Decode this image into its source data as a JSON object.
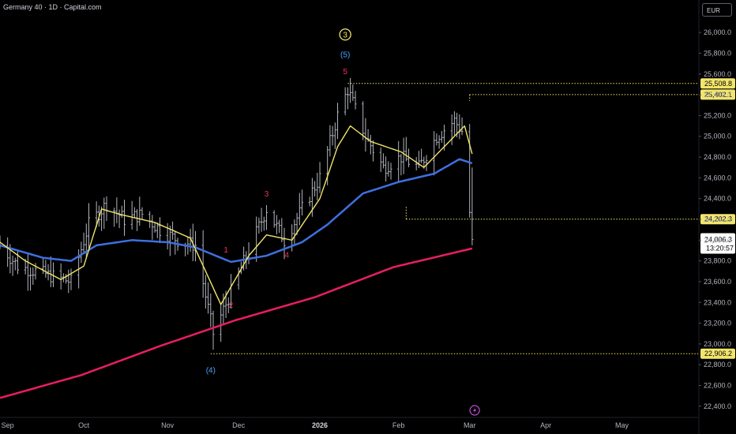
{
  "header": {
    "title": "Germany 40 · 1D · Capital.com"
  },
  "currency_button": {
    "label": "EUR"
  },
  "colors": {
    "background": "#000000",
    "bars": "#b2b5be",
    "ema_fast": "#f2e56b",
    "ema_mid": "#3f6fe0",
    "ema_slow": "#e91e63",
    "level_line": "#f2e56b",
    "wave_red": "#f0305a",
    "wave_blue": "#4aa3ff",
    "wave_yellow": "#f2e56b",
    "event_icon": "#c04fd3"
  },
  "chart_data": {
    "type": "candlestick",
    "y_axis": {
      "min": 22300,
      "max": 26100,
      "ticks": [
        "26,000.0",
        "25,800.0",
        "25,600.0",
        "25,400.0",
        "25,200.0",
        "25,000.0",
        "24,800.0",
        "24,600.0",
        "24,400.0",
        "24,200.0",
        "24,000.0",
        "23,800.0",
        "23,600.0",
        "23,400.0",
        "23,200.0",
        "23,000.0",
        "22,800.0",
        "22,600.0",
        "22,400.0"
      ],
      "tick_values": [
        26000,
        25800,
        25600,
        25400,
        25200,
        25000,
        24800,
        24600,
        24400,
        24200,
        24000,
        23800,
        23600,
        23400,
        23200,
        23000,
        22800,
        22600,
        22400
      ]
    },
    "x_axis": {
      "start": "2025-08-29",
      "end": "2026-05-31",
      "labels": [
        {
          "text": "Sep",
          "date": "2025-09-01",
          "bold": false
        },
        {
          "text": "Oct",
          "date": "2025-10-01",
          "bold": false
        },
        {
          "text": "Nov",
          "date": "2025-11-03",
          "bold": false
        },
        {
          "text": "Dec",
          "date": "2025-12-01",
          "bold": false
        },
        {
          "text": "2026",
          "date": "2026-01-02",
          "bold": true
        },
        {
          "text": "Feb",
          "date": "2026-02-02",
          "bold": false
        },
        {
          "text": "Mar",
          "date": "2026-03-02",
          "bold": false
        },
        {
          "text": "Apr",
          "date": "2026-04-01",
          "bold": false
        },
        {
          "text": "May",
          "date": "2026-05-01",
          "bold": false
        }
      ]
    },
    "price_path": [
      [
        "2025-08-29",
        23950
      ],
      [
        "2025-09-05",
        23750
      ],
      [
        "2025-09-12",
        23700
      ],
      [
        "2025-09-19",
        23650
      ],
      [
        "2025-09-26",
        23600
      ],
      [
        "2025-10-03",
        24150
      ],
      [
        "2025-10-10",
        24350
      ],
      [
        "2025-10-17",
        24200
      ],
      [
        "2025-10-24",
        24250
      ],
      [
        "2025-10-31",
        24100
      ],
      [
        "2025-11-07",
        24000
      ],
      [
        "2025-11-14",
        23950
      ],
      [
        "2025-11-21",
        23100
      ],
      [
        "2025-11-28",
        23500
      ],
      [
        "2025-12-05",
        23900
      ],
      [
        "2025-12-12",
        24300
      ],
      [
        "2025-12-19",
        24000
      ],
      [
        "2025-12-26",
        24300
      ],
      [
        "2026-01-02",
        24600
      ],
      [
        "2026-01-09",
        25200
      ],
      [
        "2026-01-13",
        25450
      ],
      [
        "2026-01-20",
        25000
      ],
      [
        "2026-01-27",
        24700
      ],
      [
        "2026-02-03",
        24800
      ],
      [
        "2026-02-10",
        24700
      ],
      [
        "2026-02-17",
        25000
      ],
      [
        "2026-02-24",
        25150
      ],
      [
        "2026-02-27",
        25050
      ],
      [
        "2026-03-03",
        24006
      ]
    ],
    "ema_fast": [
      [
        "2025-08-29",
        23980
      ],
      [
        "2025-09-08",
        23800
      ],
      [
        "2025-09-22",
        23620
      ],
      [
        "2025-10-01",
        23750
      ],
      [
        "2025-10-08",
        24300
      ],
      [
        "2025-10-15",
        24250
      ],
      [
        "2025-10-29",
        24170
      ],
      [
        "2025-11-12",
        24020
      ],
      [
        "2025-11-24",
        23380
      ],
      [
        "2025-12-05",
        23850
      ],
      [
        "2025-12-12",
        24050
      ],
      [
        "2025-12-22",
        24000
      ],
      [
        "2026-01-02",
        24400
      ],
      [
        "2026-01-09",
        24900
      ],
      [
        "2026-01-14",
        25100
      ],
      [
        "2026-01-22",
        24950
      ],
      [
        "2026-02-03",
        24850
      ],
      [
        "2026-02-12",
        24700
      ],
      [
        "2026-02-24",
        25000
      ],
      [
        "2026-02-28",
        25100
      ],
      [
        "2026-03-03",
        24830
      ]
    ],
    "ema_mid": [
      [
        "2025-08-29",
        23950
      ],
      [
        "2025-09-15",
        23830
      ],
      [
        "2025-09-26",
        23800
      ],
      [
        "2025-10-06",
        23950
      ],
      [
        "2025-10-20",
        24000
      ],
      [
        "2025-11-03",
        23980
      ],
      [
        "2025-11-14",
        23930
      ],
      [
        "2025-11-28",
        23790
      ],
      [
        "2025-12-12",
        23850
      ],
      [
        "2025-12-26",
        23980
      ],
      [
        "2026-01-05",
        24150
      ],
      [
        "2026-01-19",
        24450
      ],
      [
        "2026-02-02",
        24560
      ],
      [
        "2026-02-16",
        24640
      ],
      [
        "2026-02-26",
        24780
      ],
      [
        "2026-03-03",
        24740
      ]
    ],
    "ema_slow": [
      [
        "2025-08-29",
        22480
      ],
      [
        "2025-09-30",
        22700
      ],
      [
        "2025-10-31",
        22980
      ],
      [
        "2025-11-30",
        23230
      ],
      [
        "2025-12-31",
        23450
      ],
      [
        "2026-01-31",
        23740
      ],
      [
        "2026-03-03",
        23920
      ]
    ],
    "levels": [
      {
        "value": 25508.8,
        "label": "25,508.8",
        "from": "2026-01-13"
      },
      {
        "value": 25402.1,
        "label": "25,402.1",
        "from": "2026-03-02"
      },
      {
        "value": 24202.3,
        "label": "24,202.3",
        "from": "2026-02-05"
      },
      {
        "value": 22906.2,
        "label": "22,906.2",
        "from": "2025-11-20"
      }
    ],
    "last_price": {
      "value": 24006.3,
      "label": "24,006.3",
      "countdown": "13:20:57"
    },
    "wave_labels": [
      {
        "text": "1",
        "date": "2025-11-26",
        "price": 23880,
        "color": "red"
      },
      {
        "text": "2",
        "date": "2025-11-28",
        "price": 23350,
        "color": "red"
      },
      {
        "text": "3",
        "date": "2025-12-12",
        "price": 24420,
        "color": "red"
      },
      {
        "text": "4",
        "date": "2025-12-20",
        "price": 23830,
        "color": "red"
      },
      {
        "text": "5",
        "date": "2026-01-12",
        "price": 25600,
        "color": "red"
      },
      {
        "text": "(4)",
        "date": "2025-11-20",
        "price": 22720,
        "color": "blue"
      },
      {
        "text": "(5)",
        "date": "2026-01-12",
        "price": 25760,
        "color": "blue"
      },
      {
        "text": "3",
        "date": "2026-01-12",
        "price": 25950,
        "color": "yellow",
        "circled": true
      }
    ]
  }
}
